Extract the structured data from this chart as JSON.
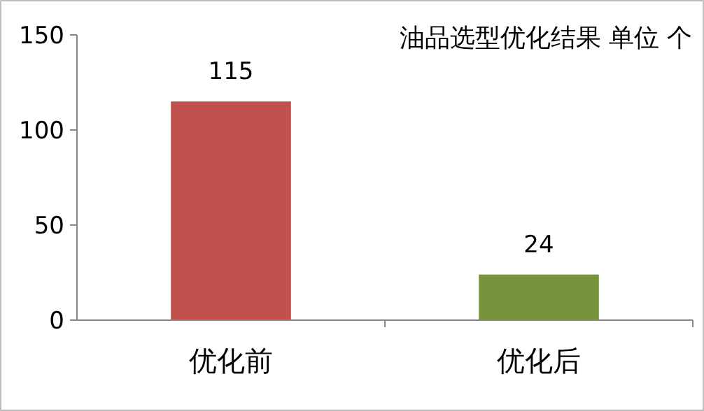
{
  "chart_data": {
    "type": "bar",
    "title": "油品选型优化结果  单位 个",
    "categories": [
      "优化前",
      "优化后"
    ],
    "values": [
      115,
      24
    ],
    "colors": [
      "#c0504d",
      "#77933c"
    ],
    "ylim": [
      0,
      150
    ],
    "yticks": [
      0,
      50,
      100,
      150
    ],
    "data_labels": true
  }
}
